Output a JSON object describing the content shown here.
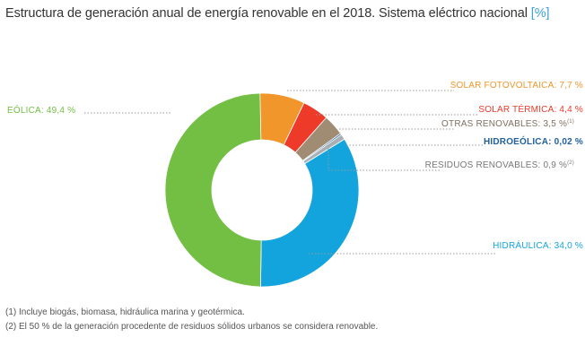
{
  "chart_data": {
    "type": "pie",
    "title": "Estructura de generación anual de energía renovable en el 2018. Sistema eléctrico nacional",
    "unit": "[%]",
    "slices": [
      {
        "name": "EÓLICA",
        "value": 49.4,
        "display": "EÓLICA: 49,4 %",
        "color": "#72bf44",
        "label_color": "#72bf44",
        "note": ""
      },
      {
        "name": "SOLAR FOTOVOLTAICA",
        "value": 7.7,
        "display": "SOLAR FOTOVOLTAICA: 7,7 %",
        "color": "#f0962a",
        "label_color": "#f0962a",
        "note": ""
      },
      {
        "name": "SOLAR TÉRMICA",
        "value": 4.4,
        "display": "SOLAR TÉRMICA: 4,4 %",
        "color": "#ee3a29",
        "label_color": "#ee3a29",
        "note": ""
      },
      {
        "name": "OTRAS RENOVABLES",
        "value": 3.5,
        "display": "OTRAS RENOVABLES: 3,5 %",
        "color": "#a08c72",
        "label_color": "#7f6f5f",
        "note": "(1)"
      },
      {
        "name": "HIDROEÓLICA",
        "value": 0.02,
        "display": "HIDROEÓLICA: 0,02 %",
        "color": "#1f5f9c",
        "label_color": "#1f5f9c",
        "note": ""
      },
      {
        "name": "RESIDUOS RENOVABLES",
        "value": 0.9,
        "display": "RESIDUOS RENOVABLES: 0,9 %",
        "color": "#a8b0b6",
        "label_color": "#777777",
        "note": "(2)"
      },
      {
        "name": "HIDRÁULICA",
        "value": 34.0,
        "display": "HIDRÁULICA: 34,0 %",
        "color": "#13a4dd",
        "label_color": "#13a4dd",
        "note": ""
      }
    ]
  },
  "footnotes": [
    "(1) Incluye biogás, biomasa, hidráulica marina y geotérmica.",
    "(2) El 50 % de la generación procedente de residuos sólidos urbanos se considera renovable."
  ]
}
